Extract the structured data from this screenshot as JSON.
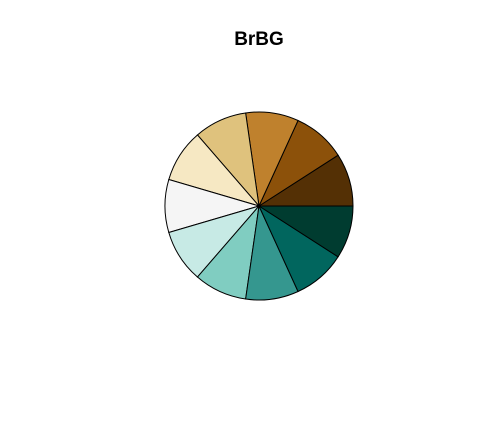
{
  "chart_data": {
    "type": "pie",
    "title": "BrBG",
    "slice_labels": [],
    "values": [
      1,
      1,
      1,
      1,
      1,
      1,
      1,
      1,
      1,
      1,
      1
    ],
    "colors": [
      "#543005",
      "#8C510A",
      "#BF812D",
      "#DFC27D",
      "#F6E8C3",
      "#F5F5F5",
      "#C7EAE5",
      "#80CDC1",
      "#35978F",
      "#01665E",
      "#003C30"
    ],
    "start_angle_deg": 0,
    "direction": "counterclockwise",
    "legend": "none"
  }
}
